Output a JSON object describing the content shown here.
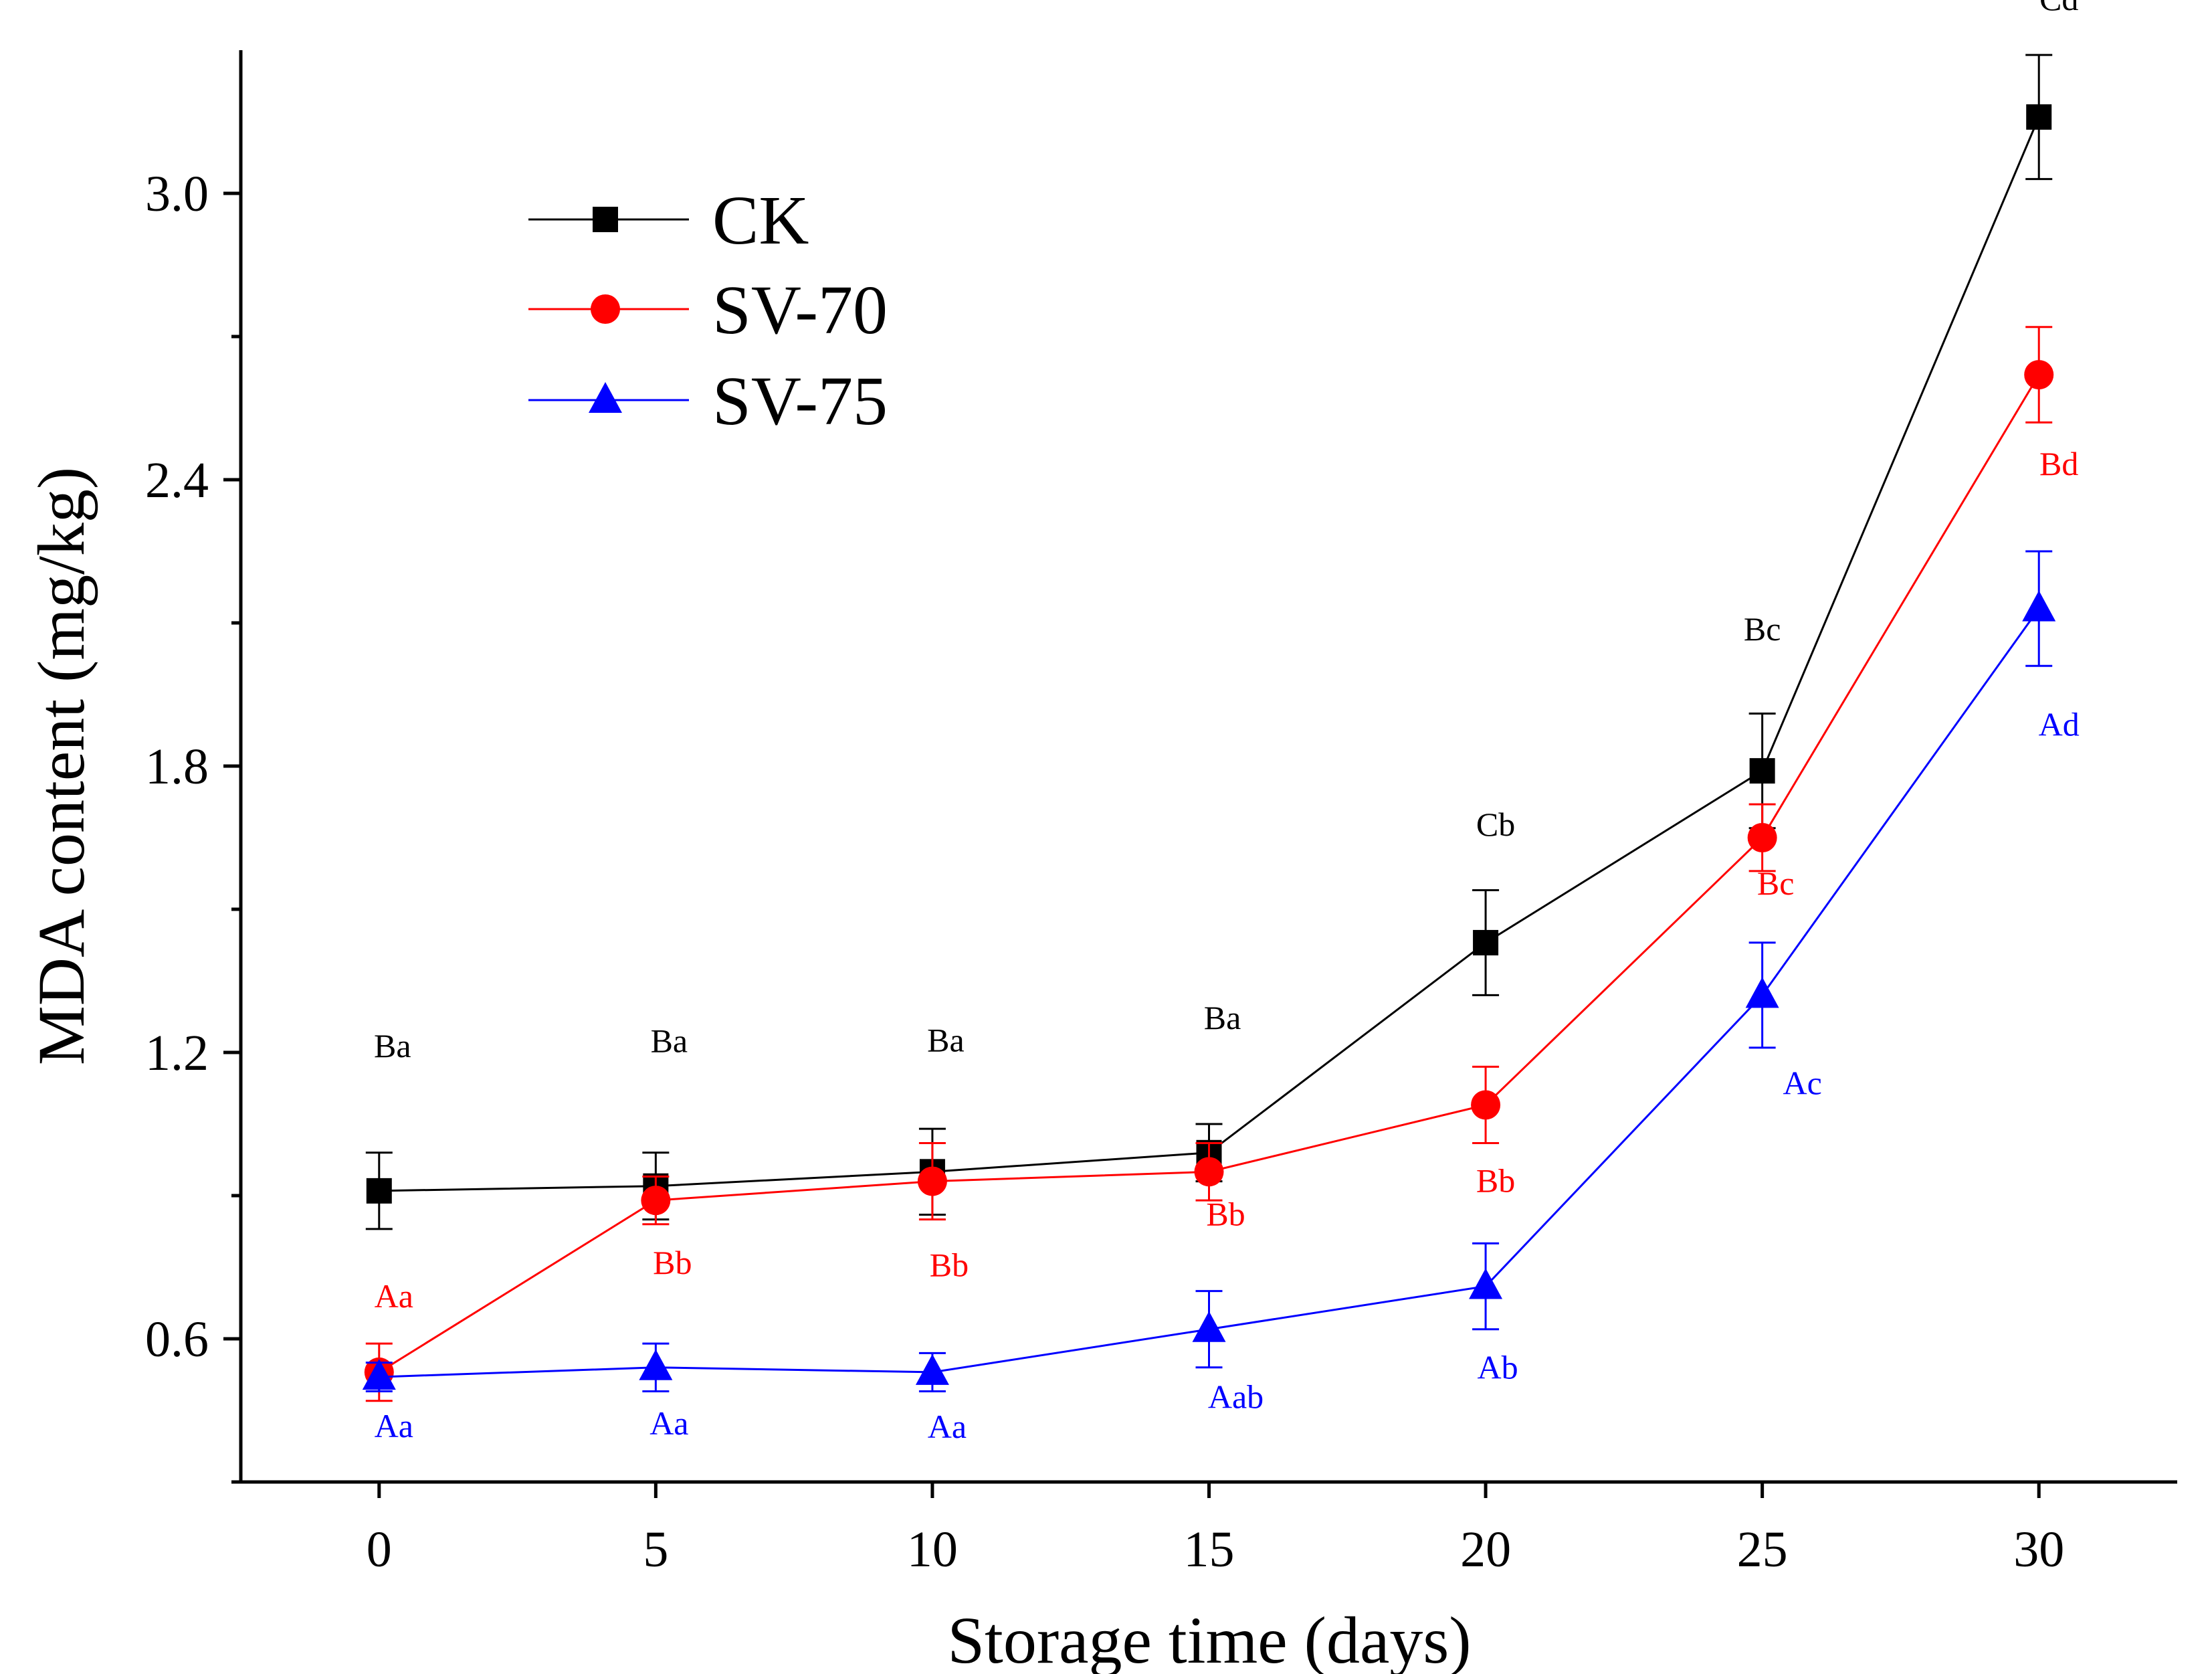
{
  "chart_data": {
    "type": "line",
    "title": "",
    "xlabel": "Storage time (days)",
    "ylabel": "MDA content (mg/kg)",
    "x": [
      0,
      5,
      10,
      15,
      20,
      25,
      30
    ],
    "xlim": [
      -2.5,
      32.5
    ],
    "ylim": [
      0.3,
      3.3
    ],
    "xticks": [
      0,
      5,
      10,
      15,
      20,
      25,
      30
    ],
    "yticks": [
      0.6,
      1.2,
      1.8,
      2.4,
      3.0
    ],
    "ytick_labels": [
      "0.6",
      "1.2",
      "1.8",
      "2.4",
      "3.0"
    ],
    "grid": false,
    "legend_position": "top-left",
    "series": [
      {
        "name": "CK",
        "color": "#000000",
        "marker": "square",
        "values": [
          0.91,
          0.92,
          0.95,
          0.99,
          1.43,
          1.79,
          3.16
        ],
        "errors": [
          0.08,
          0.07,
          0.09,
          0.06,
          0.11,
          0.12,
          0.13
        ],
        "labels": [
          "Ba",
          "Ba",
          "Ba",
          "Ba",
          "Cb",
          "Bc",
          "Cd"
        ]
      },
      {
        "name": "SV-70",
        "color": "#ff0000",
        "marker": "circle",
        "values": [
          0.53,
          0.89,
          0.93,
          0.95,
          1.09,
          1.65,
          2.62
        ],
        "errors": [
          0.06,
          0.05,
          0.08,
          0.06,
          0.08,
          0.07,
          0.1
        ],
        "labels": [
          "Aa",
          "Bb",
          "Bb",
          "Bb",
          "Bb",
          "Bc",
          "Bd"
        ]
      },
      {
        "name": "SV-75",
        "color": "#0000ff",
        "marker": "triangle",
        "values": [
          0.52,
          0.54,
          0.53,
          0.62,
          0.71,
          1.32,
          2.13
        ],
        "errors": [
          0.03,
          0.05,
          0.04,
          0.08,
          0.09,
          0.11,
          0.12
        ],
        "labels": [
          "Aa",
          "Aa",
          "Aa",
          "Aab",
          "Ab",
          "Ac",
          "Ad"
        ]
      }
    ]
  }
}
